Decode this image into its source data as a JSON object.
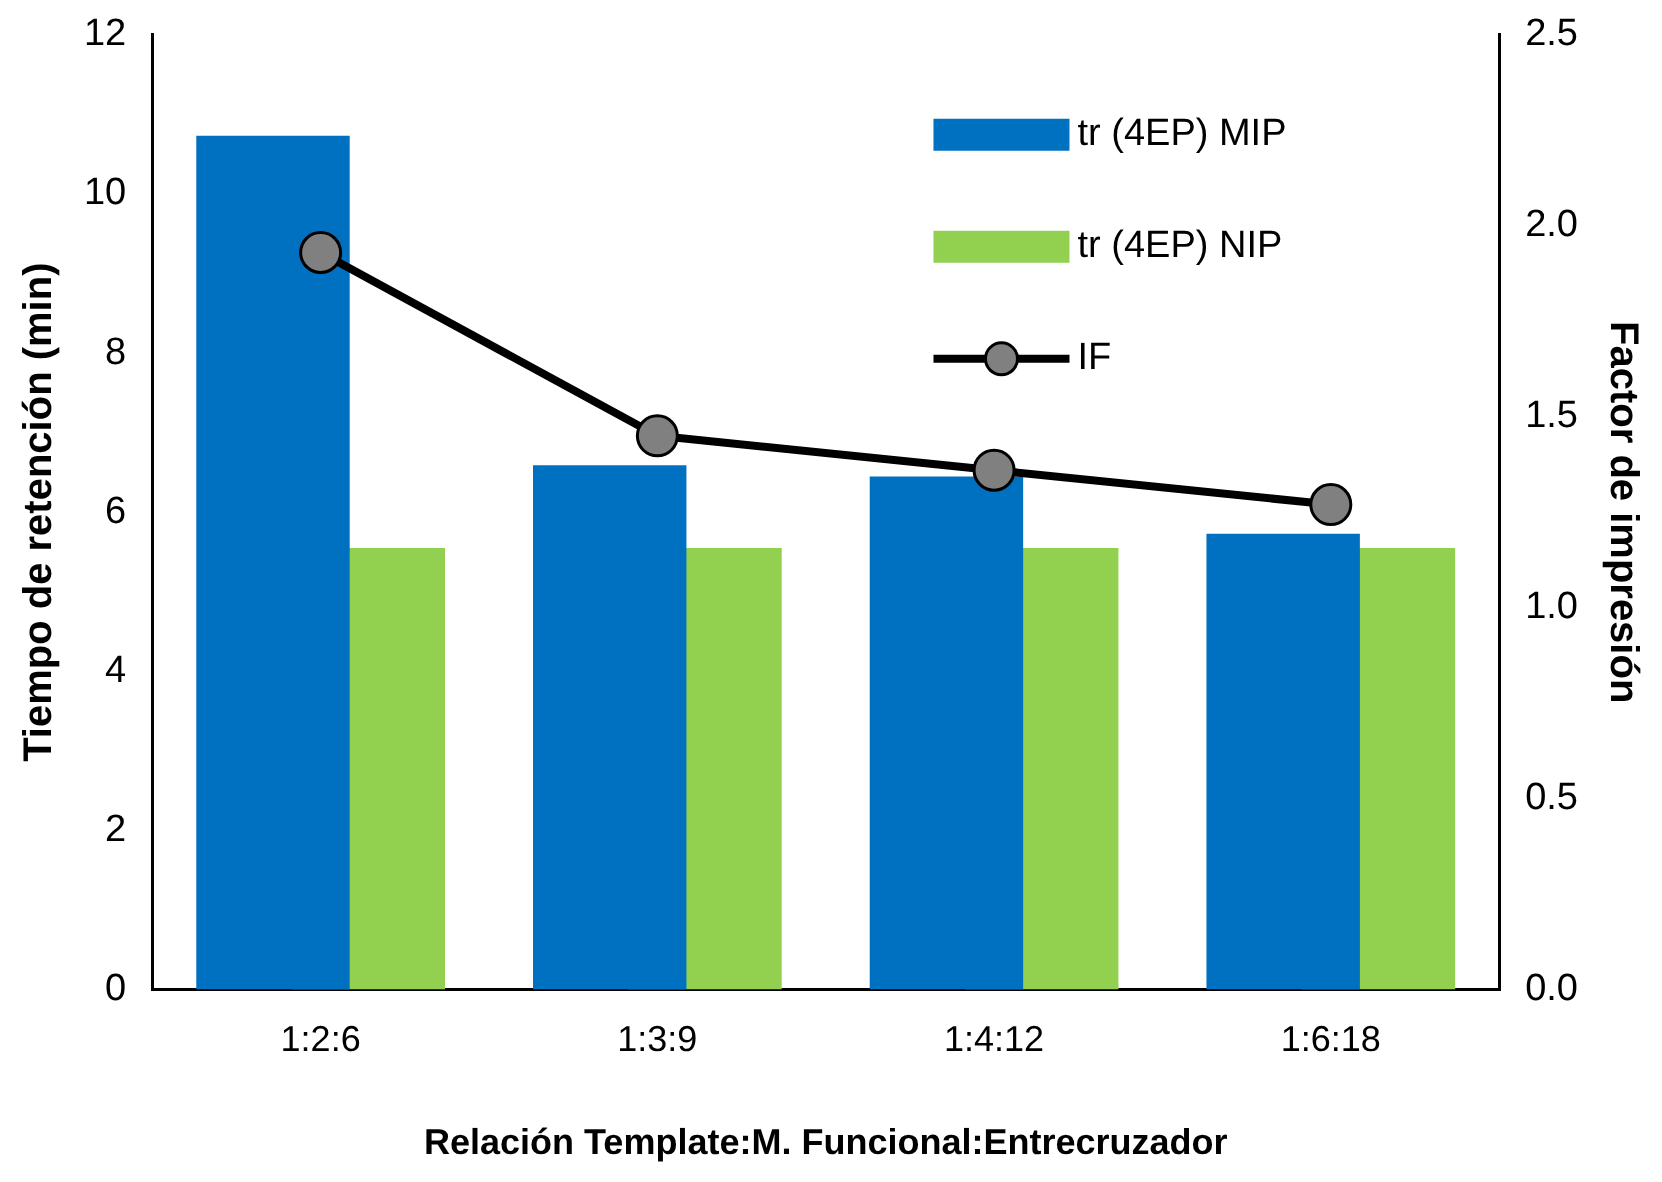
{
  "chart_data": {
    "type": "bar",
    "xlabel": "Relación Template:M. Funcional:Entrecruzador",
    "ylabel": "Tiempo de retención (min)",
    "y2label": "Factor de impresión",
    "categories": [
      "1:2:6",
      "1:3:9",
      "1:4:12",
      "1:6:18"
    ],
    "series": [
      {
        "name": "tr (4EP) MIP",
        "color": "#0070c0",
        "values": [
          10.73,
          6.59,
          6.45,
          5.73
        ]
      },
      {
        "name": "tr (4EP) NIP",
        "color": "#92d050",
        "values": [
          5.55,
          5.55,
          5.55,
          5.55
        ]
      },
      {
        "name": "IF",
        "type": "line",
        "axis": "y2",
        "color": "#000000",
        "marker": "circle",
        "values": [
          1.93,
          1.45,
          1.36,
          1.27
        ]
      }
    ],
    "ylim": [
      0,
      12
    ],
    "yticks": [
      0,
      2,
      4,
      6,
      8,
      10,
      12
    ],
    "y2lim": [
      0,
      2.5
    ],
    "y2ticks": [
      {
        "value": 0,
        "label": "0.0"
      },
      {
        "value": 0.5,
        "label": "0.5"
      },
      {
        "value": 1,
        "label": "1.0"
      },
      {
        "value": 1.5,
        "label": "1.5"
      },
      {
        "value": 2,
        "label": "2.0"
      },
      {
        "value": 2.5,
        "label": "2.5"
      }
    ],
    "grid": false,
    "legend": "top right"
  }
}
